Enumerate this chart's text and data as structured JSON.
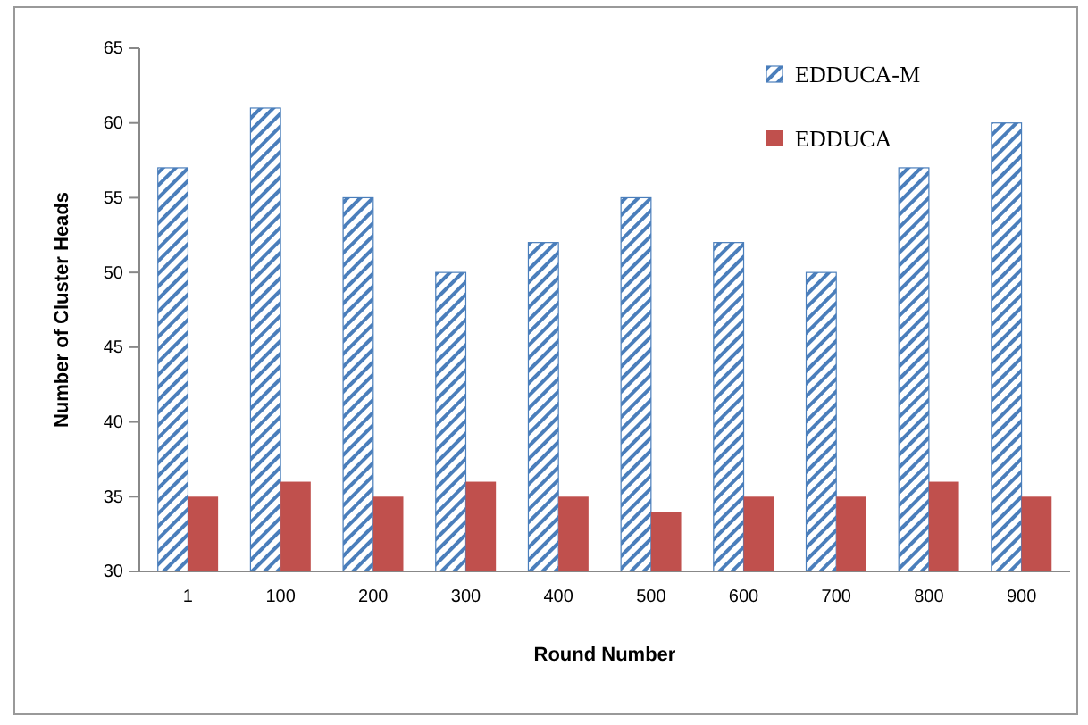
{
  "chart_data": {
    "type": "bar",
    "xlabel": "Round Number",
    "ylabel": "Number of Cluster Heads",
    "categories": [
      "1",
      "100",
      "200",
      "300",
      "400",
      "500",
      "600",
      "700",
      "800",
      "900"
    ],
    "series": [
      {
        "name": "EDDUCA-M",
        "color": "#4a7ebb",
        "values": [
          57,
          61,
          55,
          50,
          52,
          55,
          52,
          50,
          57,
          60
        ]
      },
      {
        "name": "EDDUCA",
        "color": "#c0504d",
        "values": [
          35,
          36,
          35,
          36,
          35,
          34,
          35,
          35,
          36,
          35
        ]
      }
    ],
    "ylim": [
      30,
      65
    ],
    "yticks": [
      30,
      35,
      40,
      45,
      50,
      55,
      60,
      65
    ],
    "grid": false,
    "legend": "top right"
  }
}
